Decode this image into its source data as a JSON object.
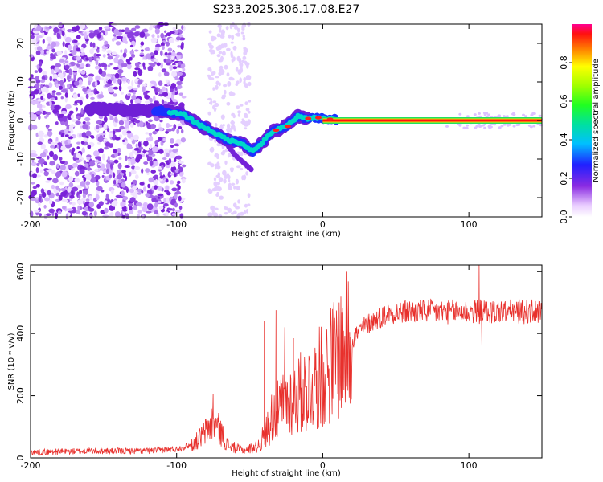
{
  "title": "S233.2025.306.17.08.E27",
  "chart_data": [
    {
      "type": "heatmap",
      "name": "spectrogram",
      "xlabel": "Height of straight line (km)",
      "ylabel": "Frequency (Hz)",
      "xlim": [
        -200,
        150
      ],
      "ylim": [
        -25,
        25
      ],
      "xticks": [
        -200,
        -100,
        0,
        100
      ],
      "yticks": [
        -20,
        -10,
        0,
        10,
        20
      ],
      "colorbar": {
        "label": "Normalized spectral amplitude",
        "range": [
          0.0,
          1.0
        ],
        "ticks": [
          0.0,
          0.2,
          0.4,
          0.6,
          0.8
        ],
        "colormap": "rainbow"
      },
      "ridge": [
        {
          "x": -155,
          "y": 3
        },
        {
          "x": -110,
          "y": 2.5
        },
        {
          "x": -95,
          "y": 1.5
        },
        {
          "x": -85,
          "y": -1
        },
        {
          "x": -75,
          "y": -3
        },
        {
          "x": -65,
          "y": -5
        },
        {
          "x": -55,
          "y": -6
        },
        {
          "x": -48,
          "y": -8
        },
        {
          "x": -42,
          "y": -6
        },
        {
          "x": -35,
          "y": -3
        },
        {
          "x": -25,
          "y": -1.5
        },
        {
          "x": -17,
          "y": 1
        },
        {
          "x": -10,
          "y": 0.5
        },
        {
          "x": -5,
          "y": 0.8
        },
        {
          "x": 0,
          "y": 0.5
        },
        {
          "x": 10,
          "y": 0.3
        },
        {
          "x": 50,
          "y": 0
        },
        {
          "x": 100,
          "y": 0
        },
        {
          "x": 150,
          "y": 0
        }
      ],
      "secondary_branch": [
        {
          "x": -70,
          "y": -4
        },
        {
          "x": -60,
          "y": -9
        },
        {
          "x": -48,
          "y": -13
        }
      ]
    },
    {
      "type": "line",
      "name": "snr",
      "xlabel": "Height of straight line (km)",
      "ylabel": "SNR (10 * v/v)",
      "xlim": [
        -200,
        150
      ],
      "ylim": [
        0,
        620
      ],
      "xticks": [
        -200,
        -100,
        0,
        100
      ],
      "yticks": [
        0,
        200,
        400,
        600
      ],
      "color": "#e8302c",
      "envelope": [
        {
          "x": -200,
          "y": 18
        },
        {
          "x": -160,
          "y": 22
        },
        {
          "x": -120,
          "y": 22
        },
        {
          "x": -100,
          "y": 28
        },
        {
          "x": -88,
          "y": 45
        },
        {
          "x": -80,
          "y": 85
        },
        {
          "x": -75,
          "y": 120
        },
        {
          "x": -70,
          "y": 85
        },
        {
          "x": -65,
          "y": 40
        },
        {
          "x": -55,
          "y": 25
        },
        {
          "x": -45,
          "y": 35
        },
        {
          "x": -40,
          "y": 70
        },
        {
          "x": -35,
          "y": 130
        },
        {
          "x": -25,
          "y": 180
        },
        {
          "x": -15,
          "y": 210
        },
        {
          "x": -5,
          "y": 240
        },
        {
          "x": 5,
          "y": 300
        },
        {
          "x": 15,
          "y": 360
        },
        {
          "x": 30,
          "y": 430
        },
        {
          "x": 45,
          "y": 465
        },
        {
          "x": 60,
          "y": 470
        },
        {
          "x": 80,
          "y": 470
        },
        {
          "x": 100,
          "y": 470
        },
        {
          "x": 120,
          "y": 470
        },
        {
          "x": 150,
          "y": 470
        }
      ],
      "spikes": [
        {
          "x": -75,
          "y": 205
        },
        {
          "x": -40,
          "y": 440
        },
        {
          "x": -32,
          "y": 475
        },
        {
          "x": -26,
          "y": 420
        },
        {
          "x": -20,
          "y": 385
        },
        {
          "x": 107,
          "y": 625
        },
        {
          "x": 109,
          "y": 340
        }
      ]
    }
  ]
}
